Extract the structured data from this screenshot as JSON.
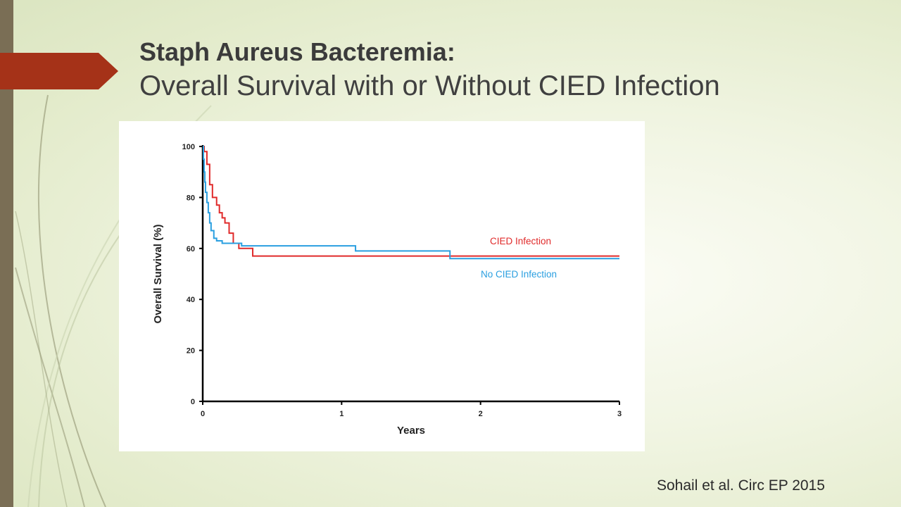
{
  "slide": {
    "title_bold": "Staph Aureus Bacteremia:",
    "title_rest": "Overall Survival with or Without CIED Infection",
    "citation": "Sohail et al. Circ EP 2015"
  },
  "colors": {
    "accent_arrow": "#a53218",
    "left_bar": "#7a6e55",
    "cied_series": "#e02a2a",
    "no_cied_series": "#2a9fe0"
  },
  "chart_data": {
    "type": "line",
    "step": true,
    "title": "",
    "xlabel": "Years",
    "ylabel": "Overall Survival (%)",
    "xlim": [
      0,
      3
    ],
    "ylim": [
      0,
      100
    ],
    "xticks": [
      0,
      1,
      2,
      3
    ],
    "yticks": [
      0,
      20,
      40,
      60,
      80,
      100
    ],
    "grid": false,
    "series": [
      {
        "name": "CIED Infection",
        "color": "#e02a2a",
        "x": [
          0,
          0.01,
          0.03,
          0.05,
          0.07,
          0.1,
          0.12,
          0.14,
          0.16,
          0.19,
          0.22,
          0.26,
          0.36,
          3.0
        ],
        "y": [
          100,
          98,
          93,
          85,
          80,
          77,
          74,
          72,
          70,
          66,
          62,
          60,
          57,
          57
        ]
      },
      {
        "name": "No CIED Infection",
        "color": "#2a9fe0",
        "x": [
          0,
          0.005,
          0.01,
          0.015,
          0.02,
          0.03,
          0.04,
          0.05,
          0.06,
          0.08,
          0.1,
          0.14,
          0.22,
          0.28,
          1.1,
          1.78,
          3.0
        ],
        "y": [
          100,
          95,
          90,
          86,
          82,
          78,
          74,
          70,
          67,
          64,
          63,
          62,
          62,
          61,
          59,
          56,
          56
        ]
      }
    ]
  }
}
